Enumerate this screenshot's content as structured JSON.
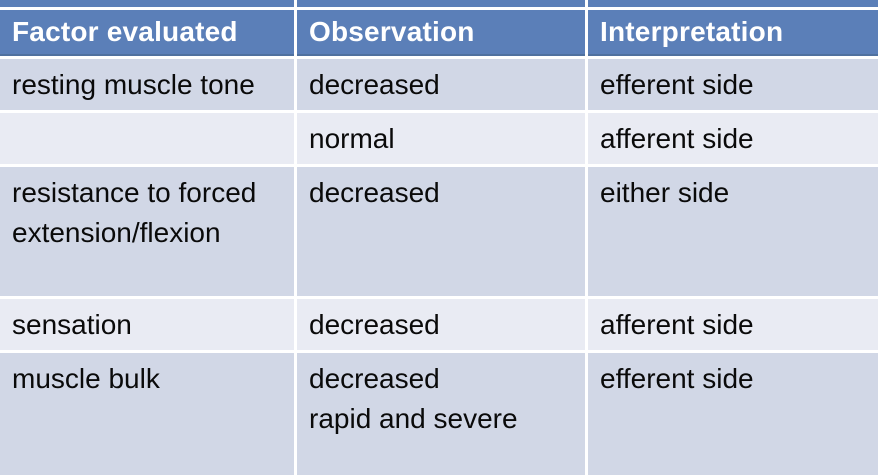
{
  "table": {
    "columns": [
      {
        "label": "Factor evaluated"
      },
      {
        "label": "Observation"
      },
      {
        "label": "Interpretation"
      }
    ],
    "rows": [
      {
        "factor": "resting muscle tone",
        "observation": "decreased",
        "interpretation": "efferent side"
      },
      {
        "factor": "",
        "observation": "normal",
        "interpretation": "afferent side"
      },
      {
        "factor": "resistance to forced\nextension/flexion",
        "observation": "decreased",
        "interpretation": "either side"
      },
      {
        "factor": "sensation",
        "observation": "decreased",
        "interpretation": "afferent side"
      },
      {
        "factor": "muscle bulk",
        "observation": "decreased\nrapid and severe",
        "interpretation": "efferent side"
      }
    ],
    "colors": {
      "header_bg": "#5B7FB8",
      "header_border_bottom": "#50719F",
      "row_band_dark": "#D1D7E6",
      "row_band_light": "#E9EBF3",
      "header_text": "#FFFFFF",
      "body_text": "#0A0A0A",
      "grid_gap": "#FFFFFF"
    }
  }
}
